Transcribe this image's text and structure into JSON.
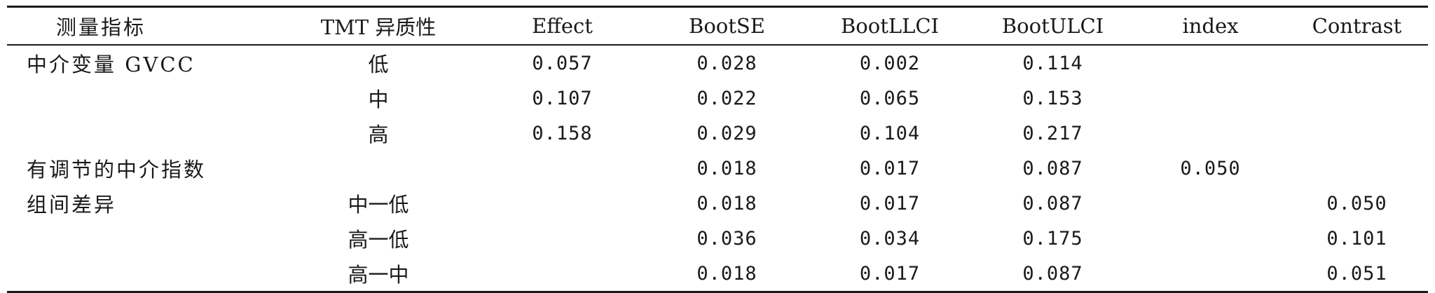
{
  "table": {
    "headers": [
      "测量指标",
      "TMT 异质性",
      "Effect",
      "BootSE",
      "BootLLCI",
      "BootULCI",
      "index",
      "Contrast"
    ],
    "rows": [
      [
        "中介变量 GVCC",
        "低",
        "0.057",
        "0.028",
        "0.002",
        "0.114",
        "",
        ""
      ],
      [
        "",
        "中",
        "0.107",
        "0.022",
        "0.065",
        "0.153",
        "",
        ""
      ],
      [
        "",
        "高",
        "0.158",
        "0.029",
        "0.104",
        "0.217",
        "",
        ""
      ],
      [
        "有调节的中介指数",
        "",
        "",
        "0.018",
        "0.017",
        "0.087",
        "0.050",
        ""
      ],
      [
        "组间差异",
        "中一低",
        "",
        "0.018",
        "0.017",
        "0.087",
        "",
        "0.050"
      ],
      [
        "",
        "高一低",
        "",
        "0.036",
        "0.034",
        "0.175",
        "",
        "0.101"
      ],
      [
        "",
        "高一中",
        "",
        "0.018",
        "0.017",
        "0.087",
        "",
        "0.051"
      ]
    ]
  }
}
